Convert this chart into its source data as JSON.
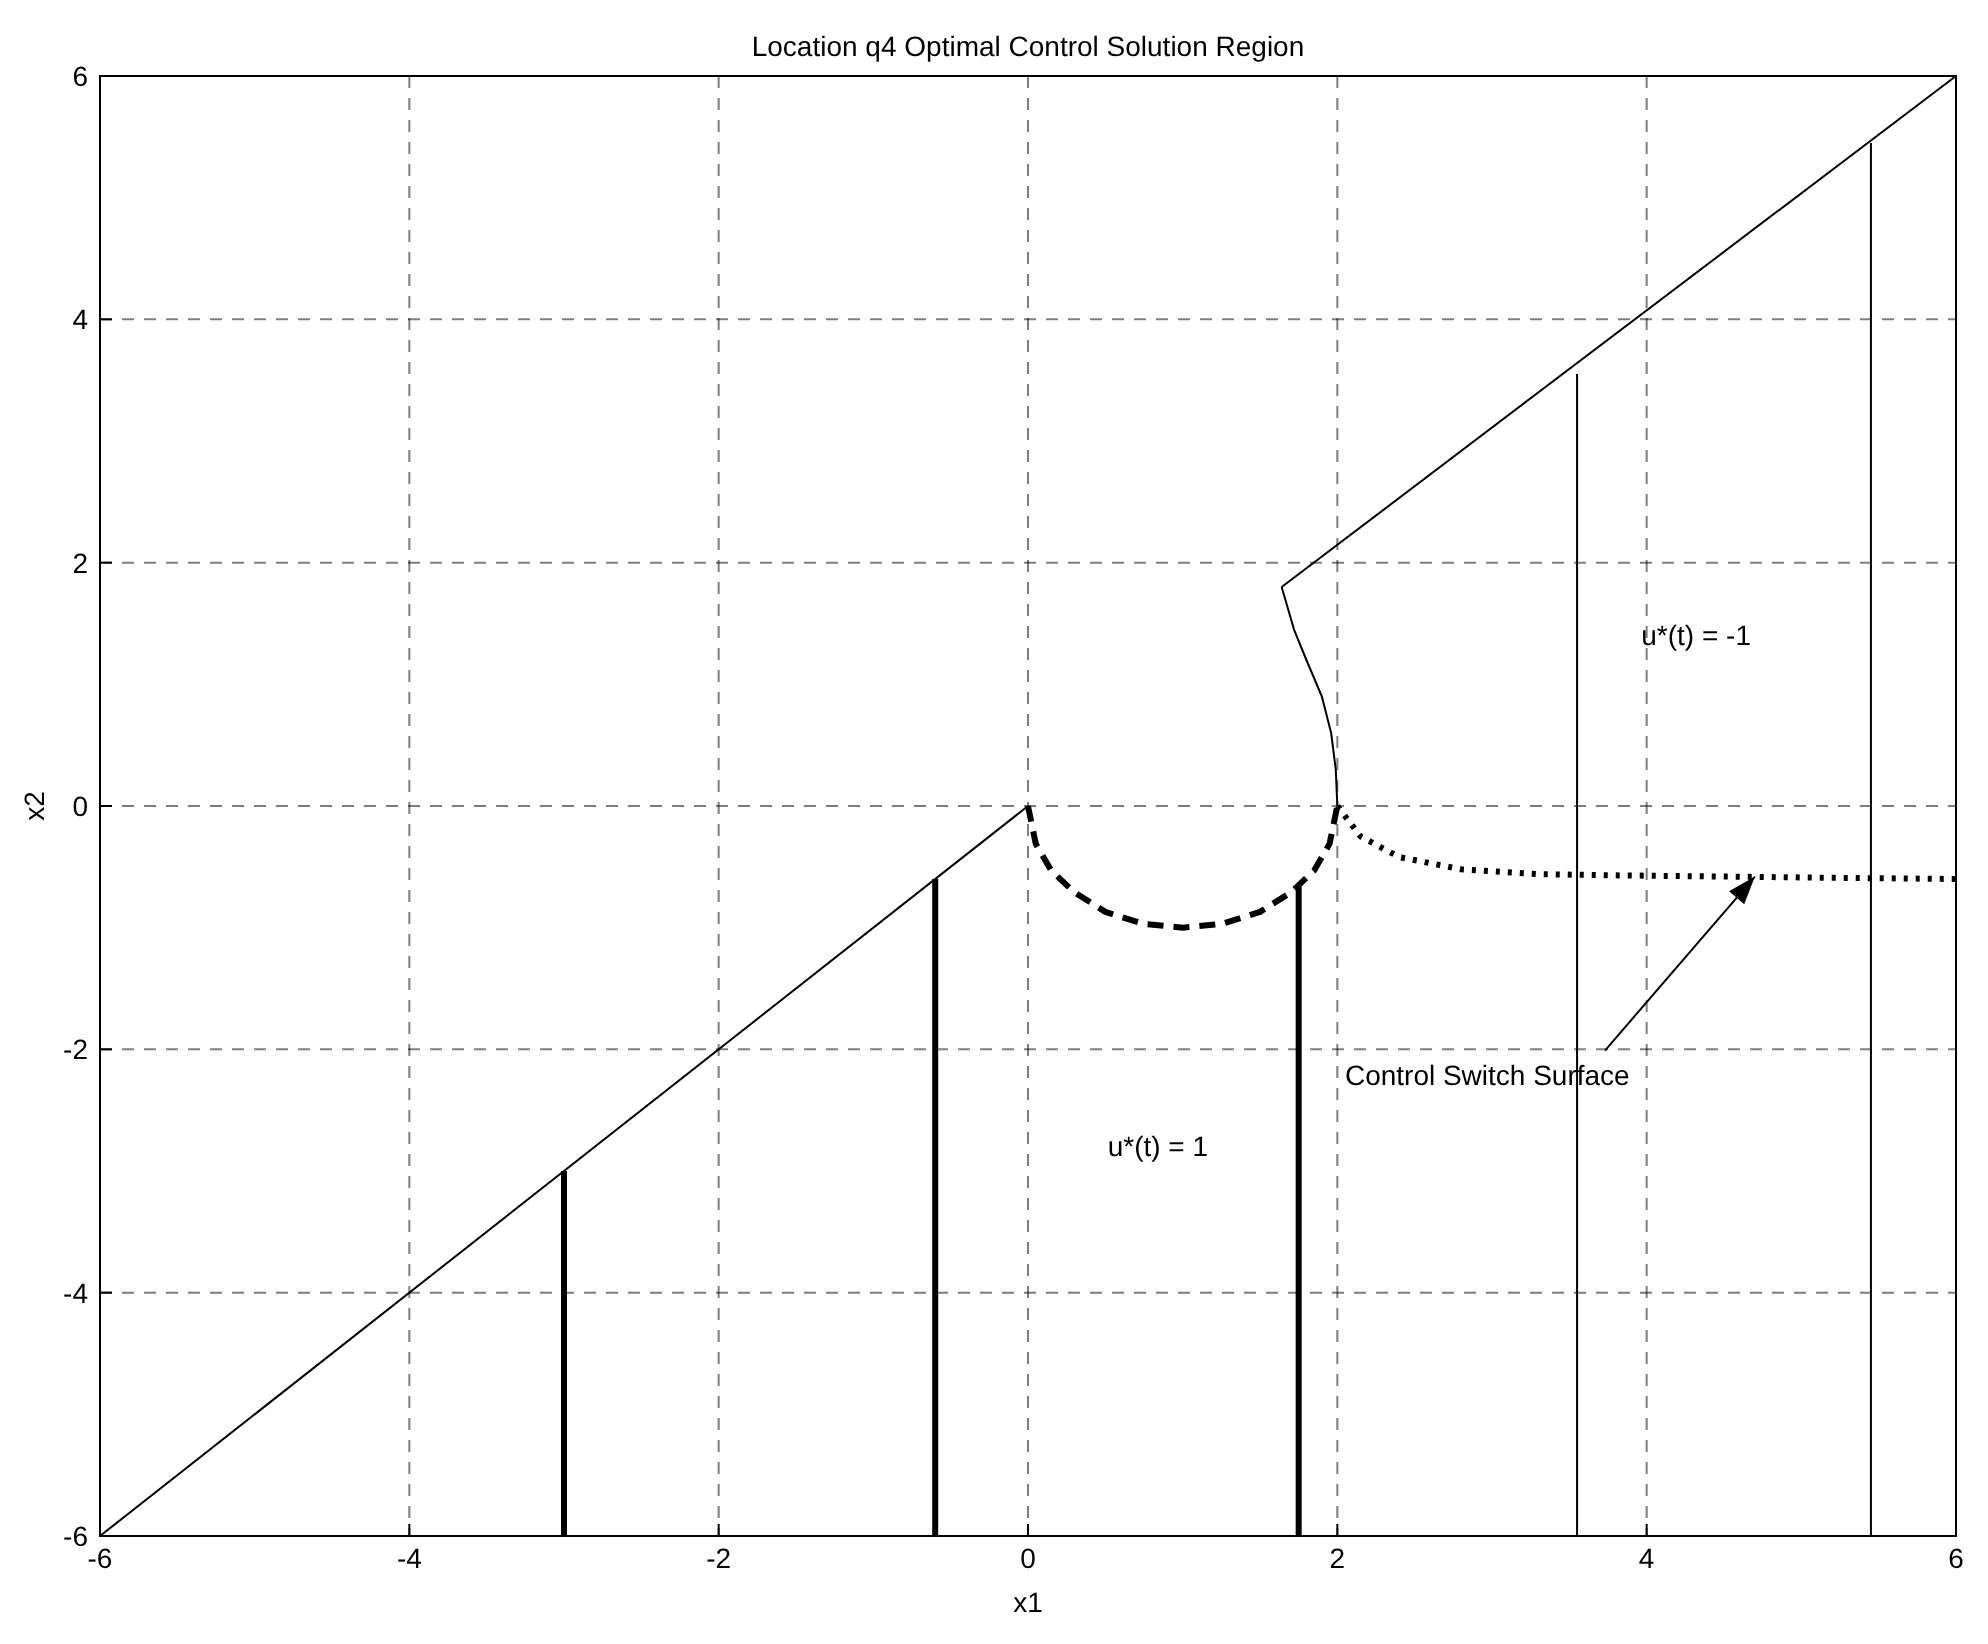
{
  "chart_data": {
    "type": "line",
    "title": "Location q4 Optimal Control Solution Region",
    "xlabel": "x1",
    "ylabel": "x2",
    "xlim": [
      -6,
      6
    ],
    "ylim": [
      -6,
      6
    ],
    "xticks": [
      -6,
      -4,
      -2,
      0,
      2,
      4,
      6
    ],
    "yticks": [
      -6,
      -4,
      -2,
      0,
      2,
      4,
      6
    ],
    "grid": true,
    "series": [
      {
        "color": "#000000",
        "line_style": "solid",
        "x": [
          -6,
          0
        ],
        "values": [
          -6,
          0
        ]
      },
      {
        "color": "#000000",
        "line_style": "solid",
        "x": [
          1.64,
          6
        ],
        "values": [
          1.8,
          6
        ]
      },
      {
        "color": "#000000",
        "line_style": "solid",
        "x": [
          1.64,
          1.72,
          1.8,
          1.9,
          1.96,
          1.99,
          2
        ],
        "values": [
          1.8,
          1.45,
          1.2,
          0.9,
          0.6,
          0.3,
          0
        ]
      },
      {
        "color": "#000000",
        "line_style": "dashed",
        "x": [
          0,
          0.05,
          0.15,
          0.3,
          0.5,
          0.75,
          1,
          1.25,
          1.5,
          1.7,
          1.85,
          1.95,
          2
        ],
        "values": [
          0,
          -0.31,
          -0.53,
          -0.71,
          -0.87,
          -0.97,
          -1,
          -0.97,
          -0.87,
          -0.71,
          -0.53,
          -0.31,
          0
        ]
      },
      {
        "color": "#000000",
        "line_style": "dotted",
        "x": [
          2,
          2.15,
          2.4,
          2.8,
          3.3,
          3.8,
          4.5,
          5.2,
          6
        ],
        "values": [
          0,
          -0.25,
          -0.42,
          -0.52,
          -0.56,
          -0.57,
          -0.58,
          -0.59,
          -0.6
        ]
      },
      {
        "color": "#000000",
        "line_style": "solid",
        "x": [
          -3,
          -3
        ],
        "values": [
          -6,
          -3
        ]
      },
      {
        "color": "#000000",
        "line_style": "solid",
        "x": [
          -0.6,
          -0.6
        ],
        "values": [
          -6,
          -0.6
        ]
      },
      {
        "color": "#000000",
        "line_style": "solid",
        "x": [
          1.75,
          1.75
        ],
        "values": [
          -6,
          -0.66
        ]
      },
      {
        "color": "#000000",
        "line_style": "solid",
        "x": [
          3.55,
          3.55
        ],
        "values": [
          -6,
          3.55
        ]
      },
      {
        "color": "#000000",
        "line_style": "solid",
        "x": [
          5.45,
          5.45
        ],
        "values": [
          -6,
          5.45
        ]
      }
    ],
    "annotations": [
      "u*(t) = -1",
      "u*(t) = 1",
      {
        "text": "Control Switch Surface",
        "x": 4.7,
        "y": -0.58
      }
    ]
  }
}
